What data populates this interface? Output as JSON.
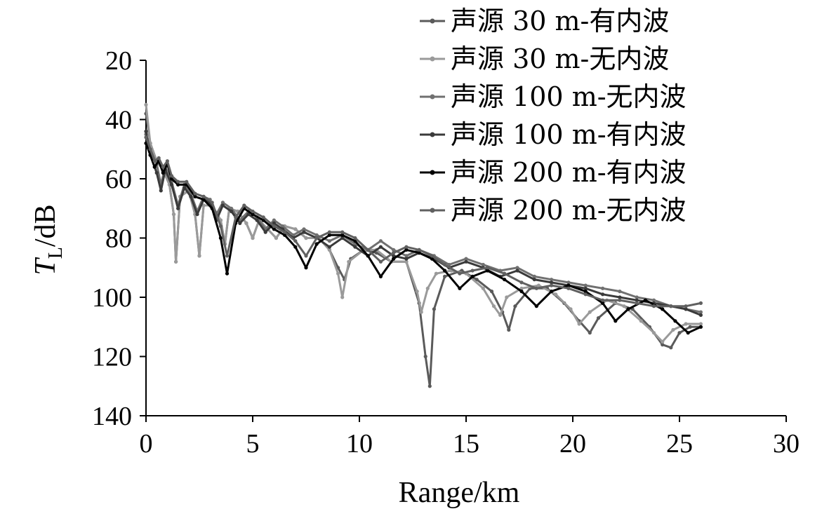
{
  "chart_data": {
    "type": "line",
    "title": "",
    "xlabel": "Range/km",
    "ylabel_main": "T",
    "ylabel_sub": "L",
    "ylabel_unit": "/dB",
    "xlim": [
      0,
      30
    ],
    "ylim": [
      20,
      140
    ],
    "y_inverted": true,
    "xticks": [
      0,
      5,
      10,
      15,
      20,
      25,
      30
    ],
    "yticks": [
      20,
      40,
      60,
      80,
      100,
      120,
      140
    ],
    "grid": false,
    "legend_position": "top-right",
    "series": [
      {
        "name": "声源 30 m-有内波",
        "color": "#5a5a5a",
        "x": [
          0,
          0.2,
          0.5,
          0.8,
          1.1,
          1.3,
          1.4,
          1.6,
          2.0,
          2.3,
          2.5,
          2.7,
          3.1,
          3.5,
          3.7,
          3.9,
          4.3,
          4.7,
          5.0,
          5.3,
          5.7,
          6.1,
          6.5,
          7.0,
          7.5,
          8.1,
          8.6,
          9.0,
          9.3,
          9.6,
          10.2,
          10.8,
          11.5,
          12.2,
          12.8,
          13.1,
          13.3,
          13.5,
          14.0,
          14.8,
          15.5,
          16.2,
          16.7,
          17.0,
          17.3,
          18.0,
          18.8,
          19.6,
          20.3,
          20.8,
          21.2,
          22.0,
          22.8,
          23.6,
          24.2,
          24.6,
          25.0,
          25.5,
          26.0
        ],
        "y": [
          38,
          48,
          54,
          57,
          62,
          72,
          88,
          66,
          64,
          72,
          86,
          69,
          69,
          74,
          82,
          70,
          71,
          75,
          80,
          74,
          77,
          80,
          76,
          77,
          80,
          80,
          84,
          90,
          94,
          87,
          84,
          85,
          88,
          88,
          102,
          120,
          130,
          104,
          93,
          91,
          94,
          98,
          105,
          111,
          103,
          97,
          97,
          102,
          108,
          112,
          107,
          102,
          104,
          110,
          116,
          117,
          112,
          110,
          110
        ]
      },
      {
        "name": "声源 30 m-无内波",
        "color": "#9a9a9a",
        "x": [
          0,
          0.2,
          0.5,
          0.8,
          1.1,
          1.3,
          1.4,
          1.6,
          2.0,
          2.3,
          2.5,
          2.7,
          3.1,
          3.5,
          3.7,
          3.9,
          4.3,
          4.7,
          5.0,
          5.3,
          5.7,
          6.1,
          6.5,
          7.0,
          7.5,
          8.1,
          8.6,
          9.0,
          9.2,
          9.5,
          10.2,
          10.8,
          11.5,
          12.2,
          12.7,
          12.9,
          13.2,
          13.6,
          14.3,
          15.0,
          15.8,
          16.3,
          16.6,
          16.9,
          17.6,
          18.4,
          19.2,
          19.9,
          20.3,
          20.8,
          21.6,
          22.4,
          23.2,
          23.8,
          24.2,
          24.7,
          25.3,
          26.0
        ],
        "y": [
          35,
          48,
          54,
          57,
          62,
          72,
          88,
          66,
          64,
          72,
          86,
          69,
          69,
          74,
          82,
          70,
          71,
          75,
          80,
          74,
          77,
          80,
          76,
          77,
          80,
          80,
          84,
          92,
          100,
          88,
          84,
          84,
          88,
          88,
          98,
          105,
          97,
          92,
          91,
          92,
          97,
          103,
          106,
          100,
          97,
          96,
          99,
          104,
          109,
          105,
          101,
          103,
          108,
          112,
          115,
          111,
          109,
          109
        ]
      },
      {
        "name": "声源 100 m-无内波",
        "color": "#707070",
        "x": [
          0,
          0.2,
          0.5,
          0.7,
          0.9,
          1.2,
          1.5,
          1.8,
          2.1,
          2.4,
          2.7,
          3.0,
          3.3,
          3.6,
          4.0,
          4.4,
          4.8,
          5.2,
          5.6,
          6.0,
          6.4,
          6.9,
          7.4,
          8.0,
          8.6,
          9.2,
          9.8,
          10.4,
          11.0,
          11.6,
          12.2,
          12.8,
          13.5,
          14.2,
          15.0,
          15.8,
          16.6,
          17.4,
          18.2,
          19.0,
          19.8,
          20.6,
          21.4,
          22.2,
          23.0,
          23.8,
          24.6,
          25.3,
          26.0
        ],
        "y": [
          45,
          50,
          55,
          62,
          56,
          61,
          69,
          62,
          65,
          71,
          66,
          67,
          72,
          68,
          70,
          74,
          71,
          73,
          77,
          74,
          76,
          79,
          77,
          79,
          81,
          79,
          82,
          84,
          81,
          84,
          86,
          84,
          86,
          89,
          87,
          89,
          91,
          90,
          93,
          94,
          95,
          96,
          97,
          98,
          100,
          101,
          103,
          104,
          105
        ]
      },
      {
        "name": "声源 100 m-有内波",
        "color": "#3a3a3a",
        "x": [
          0,
          0.2,
          0.5,
          0.7,
          0.9,
          1.2,
          1.5,
          1.8,
          2.1,
          2.4,
          2.7,
          3.0,
          3.3,
          3.6,
          4.0,
          4.4,
          4.8,
          5.2,
          5.6,
          6.0,
          6.4,
          6.9,
          7.4,
          8.0,
          8.6,
          9.2,
          9.8,
          10.4,
          11.0,
          11.6,
          12.2,
          12.8,
          13.5,
          14.2,
          15.0,
          15.8,
          16.6,
          17.4,
          18.2,
          19.0,
          19.8,
          20.6,
          21.4,
          22.2,
          23.0,
          23.8,
          24.6,
          25.3,
          26.0
        ],
        "y": [
          44,
          52,
          58,
          64,
          57,
          62,
          70,
          63,
          66,
          72,
          67,
          68,
          74,
          69,
          71,
          75,
          72,
          74,
          78,
          75,
          77,
          80,
          78,
          80,
          83,
          80,
          83,
          86,
          83,
          86,
          87,
          85,
          87,
          90,
          88,
          90,
          93,
          91,
          94,
          95,
          96,
          97,
          99,
          100,
          101,
          102,
          103,
          104,
          106
        ]
      },
      {
        "name": "声源 200 m-有内波",
        "color": "#000000",
        "x": [
          0,
          0.2,
          0.4,
          0.6,
          0.8,
          1.0,
          1.2,
          1.5,
          1.9,
          2.3,
          2.7,
          3.1,
          3.5,
          3.8,
          4.2,
          4.6,
          5.0,
          5.5,
          6.0,
          6.5,
          7.0,
          7.5,
          8.0,
          8.6,
          9.2,
          9.8,
          10.4,
          11.0,
          11.6,
          12.2,
          12.8,
          13.4,
          14.0,
          14.7,
          15.3,
          16.0,
          16.8,
          17.6,
          18.3,
          19.0,
          19.8,
          20.6,
          21.4,
          22.0,
          22.6,
          23.4,
          24.2,
          24.8,
          25.4,
          26.0
        ],
        "y": [
          48,
          52,
          56,
          54,
          58,
          55,
          60,
          62,
          62,
          66,
          67,
          70,
          80,
          92,
          75,
          70,
          72,
          74,
          77,
          79,
          83,
          90,
          82,
          79,
          79,
          81,
          86,
          93,
          87,
          84,
          85,
          87,
          91,
          97,
          93,
          91,
          94,
          98,
          103,
          98,
          96,
          98,
          102,
          108,
          104,
          101,
          104,
          108,
          112,
          110
        ]
      },
      {
        "name": "声源 200 m-无内波",
        "color": "#606060",
        "x": [
          0,
          0.2,
          0.4,
          0.6,
          0.8,
          1.0,
          1.2,
          1.5,
          1.9,
          2.3,
          2.7,
          3.1,
          3.5,
          3.8,
          4.2,
          4.6,
          5.0,
          5.5,
          6.0,
          6.5,
          7.0,
          7.5,
          8.0,
          8.6,
          9.2,
          9.8,
          10.4,
          11.0,
          11.6,
          12.2,
          12.8,
          13.4,
          14.0,
          14.7,
          15.3,
          16.0,
          16.8,
          17.6,
          18.3,
          19.0,
          19.8,
          20.6,
          21.4,
          22.2,
          23.0,
          23.8,
          24.6,
          25.3,
          26.0
        ],
        "y": [
          46,
          50,
          54,
          53,
          56,
          54,
          59,
          61,
          61,
          65,
          66,
          68,
          76,
          86,
          73,
          69,
          71,
          73,
          76,
          78,
          81,
          86,
          80,
          78,
          78,
          80,
          84,
          88,
          85,
          83,
          84,
          86,
          89,
          92,
          91,
          90,
          92,
          95,
          97,
          96,
          97,
          99,
          101,
          101,
          102,
          103,
          103,
          103,
          102
        ]
      }
    ]
  }
}
